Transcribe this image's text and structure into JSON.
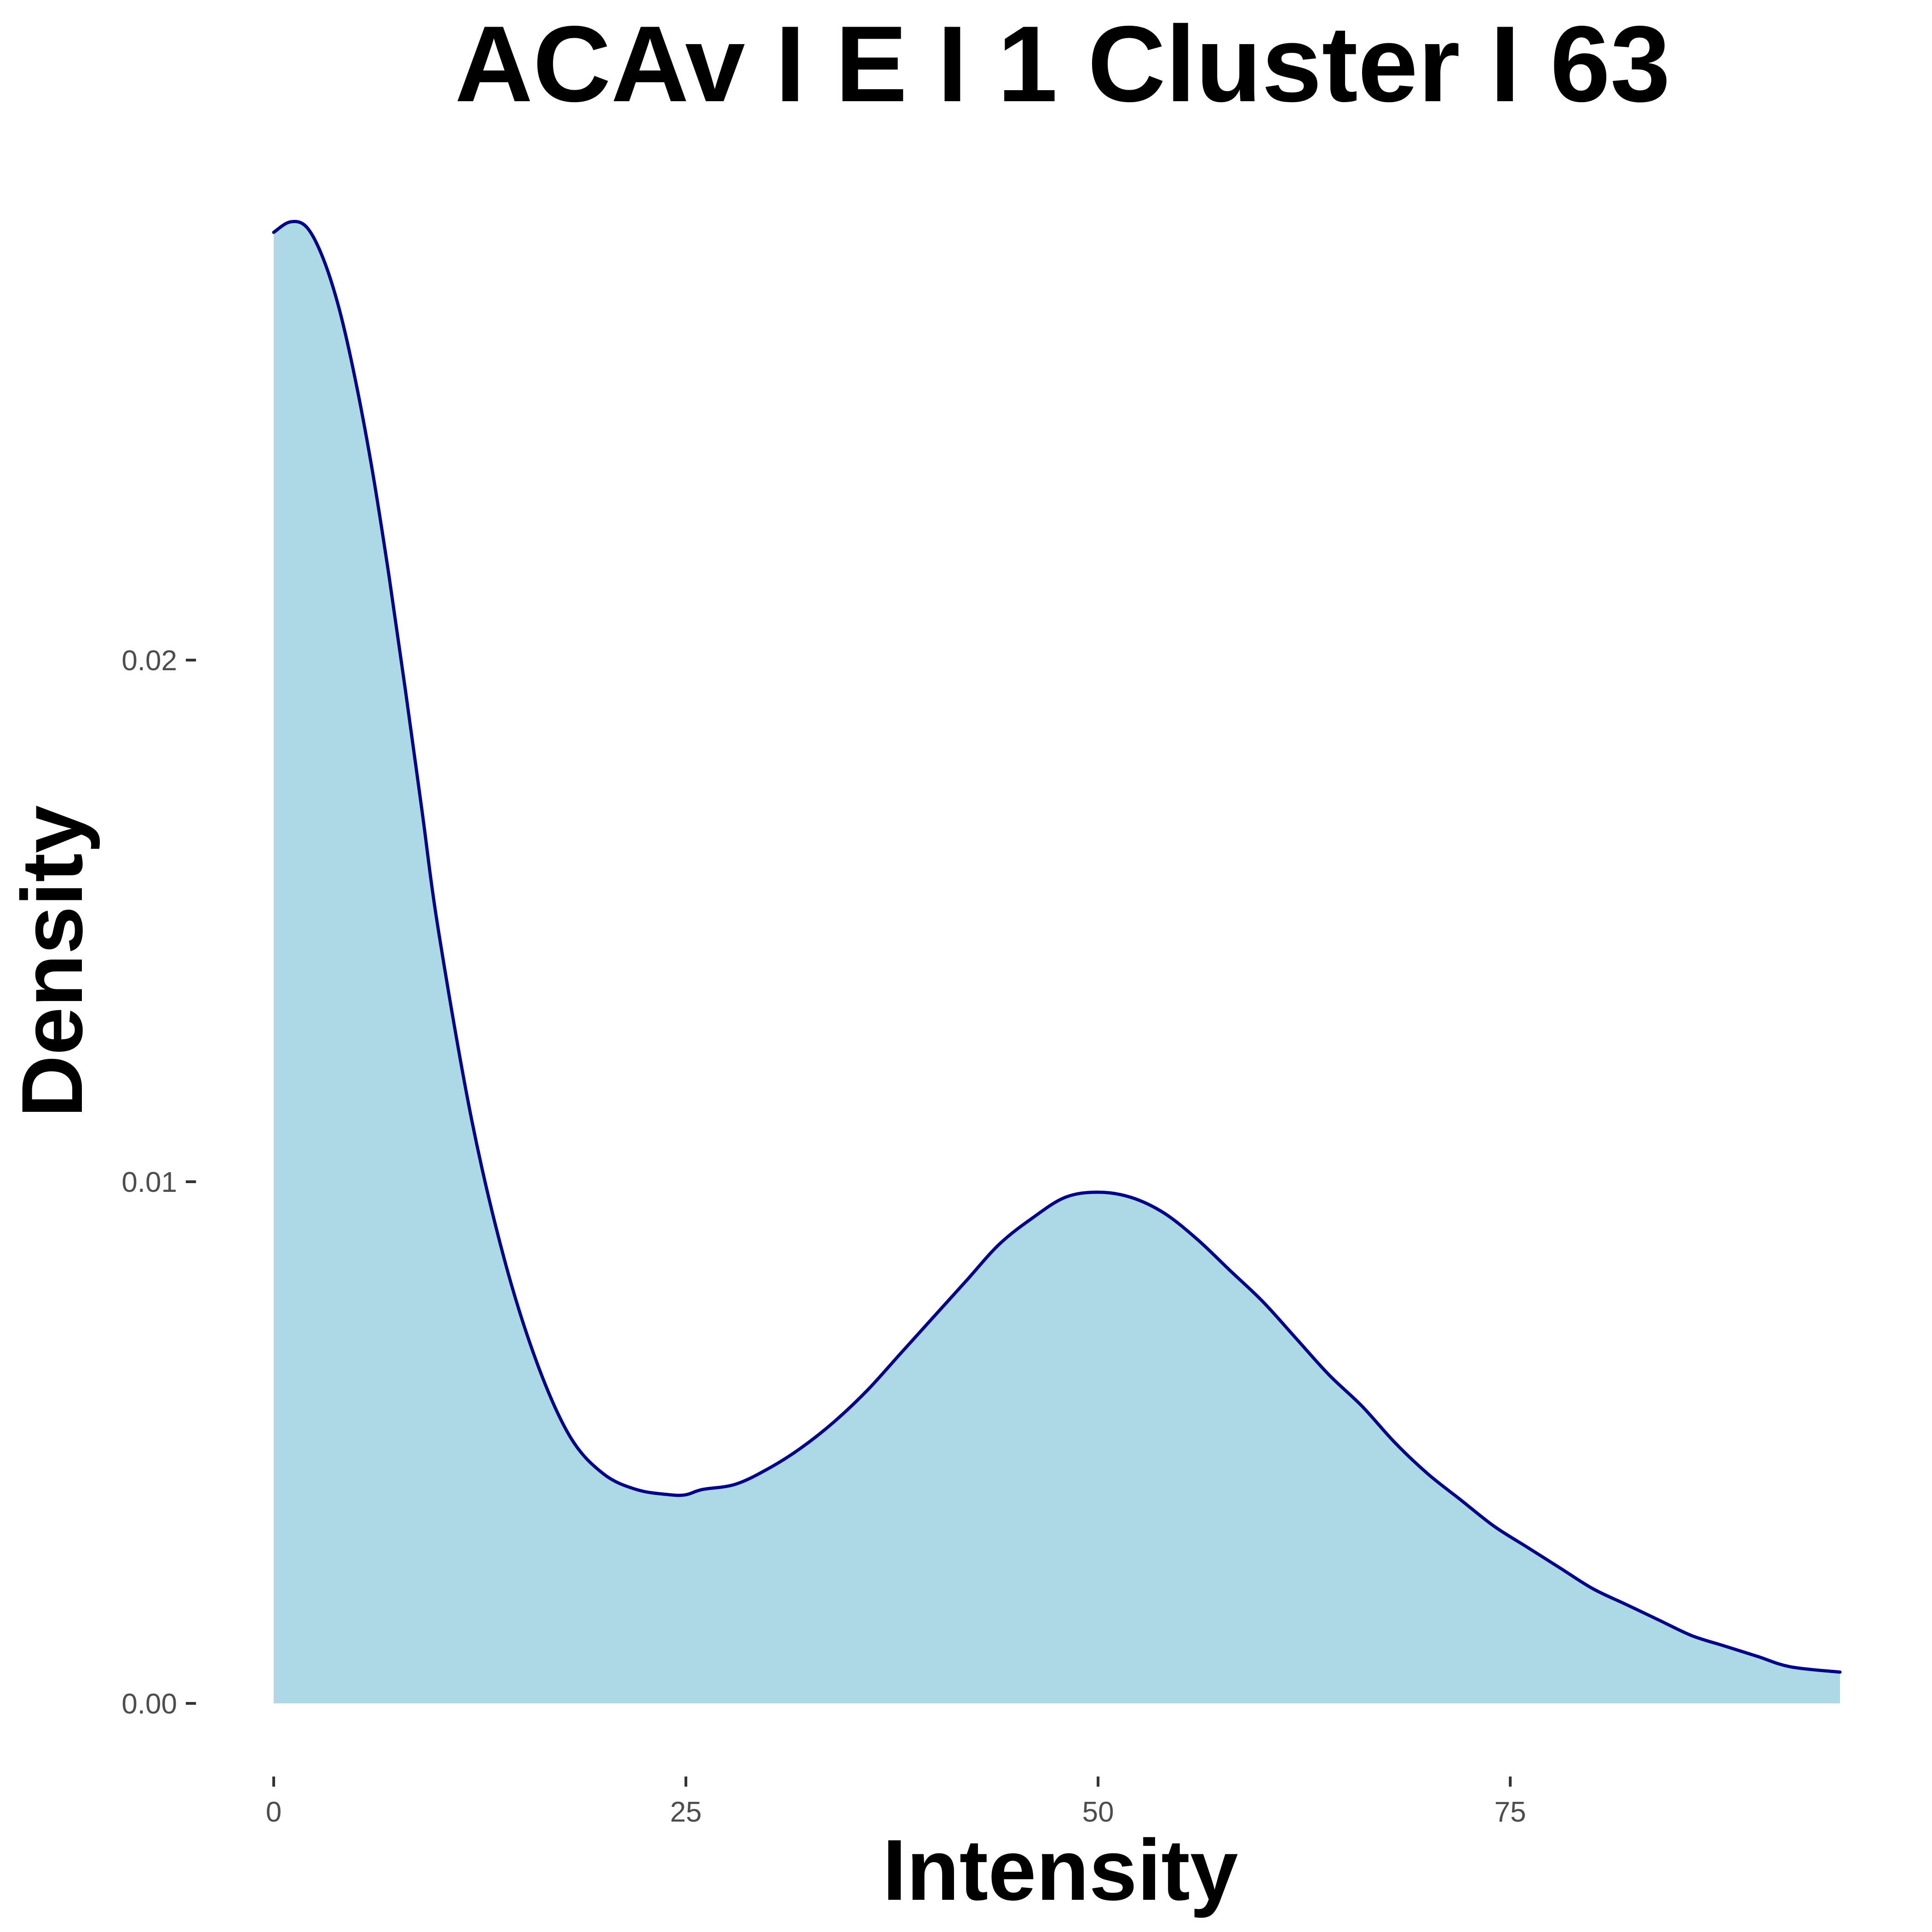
{
  "chart_data": {
    "type": "area",
    "title": "ACAv I E I 1 Cluster I  63",
    "xlabel": "Intensity",
    "ylabel": "Density",
    "xlim": [
      0,
      95
    ],
    "ylim": [
      0,
      0.0282
    ],
    "x_ticks": [
      0,
      25,
      50,
      75
    ],
    "x_tick_labels": [
      "0",
      "25",
      "50",
      "75"
    ],
    "y_ticks": [
      0.0,
      0.01,
      0.02
    ],
    "y_tick_labels": [
      "0.00",
      "0.01",
      "0.02"
    ],
    "grid": false,
    "legend": "none",
    "fill_color": "#add8e6",
    "line_color": "#00008b",
    "x": [
      0,
      1,
      2,
      3,
      4,
      5,
      6,
      7,
      8,
      9,
      10,
      12,
      14,
      16,
      18,
      20,
      22,
      24,
      25,
      26,
      28,
      30,
      32,
      34,
      36,
      38,
      40,
      42,
      44,
      46,
      48,
      50,
      52,
      54,
      56,
      58,
      60,
      62,
      64,
      66,
      68,
      70,
      72,
      74,
      76,
      78,
      80,
      82,
      84,
      86,
      88,
      90,
      92,
      95
    ],
    "y": [
      0.0282,
      0.0284,
      0.0283,
      0.0277,
      0.0267,
      0.0253,
      0.0236,
      0.0216,
      0.0194,
      0.0171,
      0.0148,
      0.0112,
      0.0085,
      0.0065,
      0.0051,
      0.0044,
      0.0041,
      0.004,
      0.004,
      0.0041,
      0.0042,
      0.0045,
      0.0049,
      0.0054,
      0.006,
      0.0067,
      0.0074,
      0.0081,
      0.0088,
      0.0093,
      0.0097,
      0.0098,
      0.0097,
      0.0094,
      0.0089,
      0.0083,
      0.0077,
      0.007,
      0.0063,
      0.0057,
      0.005,
      0.0044,
      0.0039,
      0.0034,
      0.003,
      0.0026,
      0.0022,
      0.0019,
      0.0016,
      0.0013,
      0.0011,
      0.0009,
      0.0007,
      0.0006
    ]
  }
}
